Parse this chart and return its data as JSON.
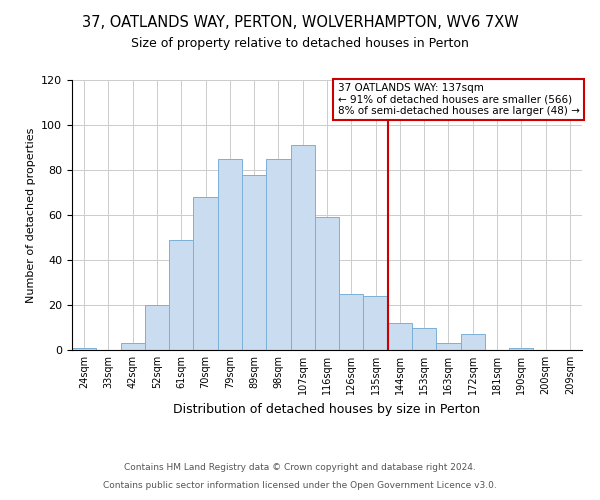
{
  "title": "37, OATLANDS WAY, PERTON, WOLVERHAMPTON, WV6 7XW",
  "subtitle": "Size of property relative to detached houses in Perton",
  "xlabel": "Distribution of detached houses by size in Perton",
  "ylabel": "Number of detached properties",
  "bar_labels": [
    "24sqm",
    "33sqm",
    "42sqm",
    "52sqm",
    "61sqm",
    "70sqm",
    "79sqm",
    "89sqm",
    "98sqm",
    "107sqm",
    "116sqm",
    "126sqm",
    "135sqm",
    "144sqm",
    "153sqm",
    "163sqm",
    "172sqm",
    "181sqm",
    "190sqm",
    "200sqm",
    "209sqm"
  ],
  "bar_values": [
    1,
    0,
    3,
    20,
    49,
    68,
    85,
    78,
    85,
    91,
    59,
    25,
    24,
    12,
    10,
    3,
    7,
    0,
    1,
    0,
    0
  ],
  "bar_color": "#c9dcf0",
  "bar_edgecolor": "#7ab0d8",
  "vline_x": 12.5,
  "vline_color": "#cc0000",
  "ylim": [
    0,
    120
  ],
  "yticks": [
    0,
    20,
    40,
    60,
    80,
    100,
    120
  ],
  "annotation_title": "37 OATLANDS WAY: 137sqm",
  "annotation_line1": "← 91% of detached houses are smaller (566)",
  "annotation_line2": "8% of semi-detached houses are larger (48) →",
  "footer_line1": "Contains HM Land Registry data © Crown copyright and database right 2024.",
  "footer_line2": "Contains public sector information licensed under the Open Government Licence v3.0.",
  "background_color": "#ffffff",
  "grid_color": "#cccccc"
}
